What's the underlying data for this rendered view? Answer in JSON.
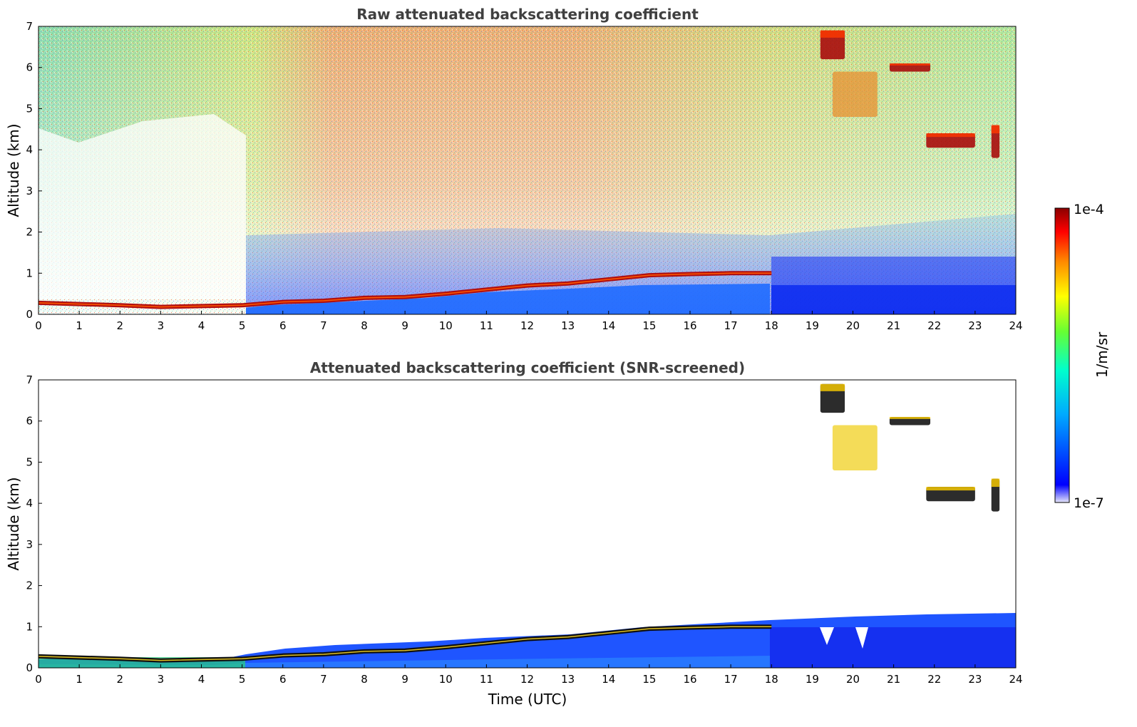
{
  "chart_data": [
    {
      "type": "heatmap",
      "title": "Raw attenuated backscattering coefficient",
      "xlabel": "",
      "ylabel": "Altitude (km)",
      "xlim": [
        0,
        24
      ],
      "ylim": [
        0,
        7
      ],
      "x_ticks": [
        "0",
        "1",
        "2",
        "3",
        "4",
        "5",
        "6",
        "7",
        "8",
        "9",
        "10",
        "11",
        "12",
        "13",
        "14",
        "15",
        "16",
        "17",
        "18",
        "19",
        "20",
        "21",
        "22",
        "23",
        "24"
      ],
      "y_ticks": [
        "0",
        "1",
        "2",
        "3",
        "4",
        "5",
        "6",
        "7"
      ],
      "boundary_layer_top_km": [
        {
          "t": 0,
          "z": 0.28
        },
        {
          "t": 2,
          "z": 0.22
        },
        {
          "t": 3,
          "z": 0.18
        },
        {
          "t": 5,
          "z": 0.22
        },
        {
          "t": 6,
          "z": 0.3
        },
        {
          "t": 7,
          "z": 0.33
        },
        {
          "t": 8,
          "z": 0.4
        },
        {
          "t": 9,
          "z": 0.42
        },
        {
          "t": 10,
          "z": 0.5
        },
        {
          "t": 11,
          "z": 0.6
        },
        {
          "t": 12,
          "z": 0.7
        },
        {
          "t": 13,
          "z": 0.75
        },
        {
          "t": 14,
          "z": 0.85
        },
        {
          "t": 15,
          "z": 0.95
        },
        {
          "t": 16,
          "z": 0.98
        },
        {
          "t": 17,
          "z": 1.0
        },
        {
          "t": 18,
          "z": 1.0
        }
      ],
      "cloud_layers": [
        {
          "t_start": 19.2,
          "t_end": 19.8,
          "z_low": 6.2,
          "z_high": 6.9
        },
        {
          "t_start": 20.9,
          "t_end": 21.9,
          "z_low": 5.9,
          "z_high": 6.1
        },
        {
          "t_start": 21.8,
          "t_end": 23.0,
          "z_low": 4.05,
          "z_high": 4.4
        },
        {
          "t_start": 23.4,
          "t_end": 23.6,
          "z_low": 3.8,
          "z_high": 4.6
        },
        {
          "t_start": 19.5,
          "t_end": 20.6,
          "z_low": 4.8,
          "z_high": 5.9
        }
      ]
    },
    {
      "type": "heatmap",
      "title": "Attenuated backscattering coefficient (SNR-screened)",
      "xlabel": "Time (UTC)",
      "ylabel": "Altitude (km)",
      "xlim": [
        0,
        24
      ],
      "ylim": [
        0,
        7
      ],
      "x_ticks": [
        "0",
        "1",
        "2",
        "3",
        "4",
        "5",
        "6",
        "7",
        "8",
        "9",
        "10",
        "11",
        "12",
        "13",
        "14",
        "15",
        "16",
        "17",
        "18",
        "19",
        "20",
        "21",
        "22",
        "23",
        "24"
      ],
      "y_ticks": [
        "0",
        "1",
        "2",
        "3",
        "4",
        "5",
        "6",
        "7"
      ]
    }
  ],
  "colorbar": {
    "label": "1/m/sr",
    "max_label": "1e-4",
    "min_label": "1e-7",
    "colormap": [
      "#e6e6fa",
      "#0000ff",
      "#00aaff",
      "#00ffcc",
      "#66ff33",
      "#ffff00",
      "#ff8800",
      "#ff0000",
      "#8b0000"
    ]
  }
}
